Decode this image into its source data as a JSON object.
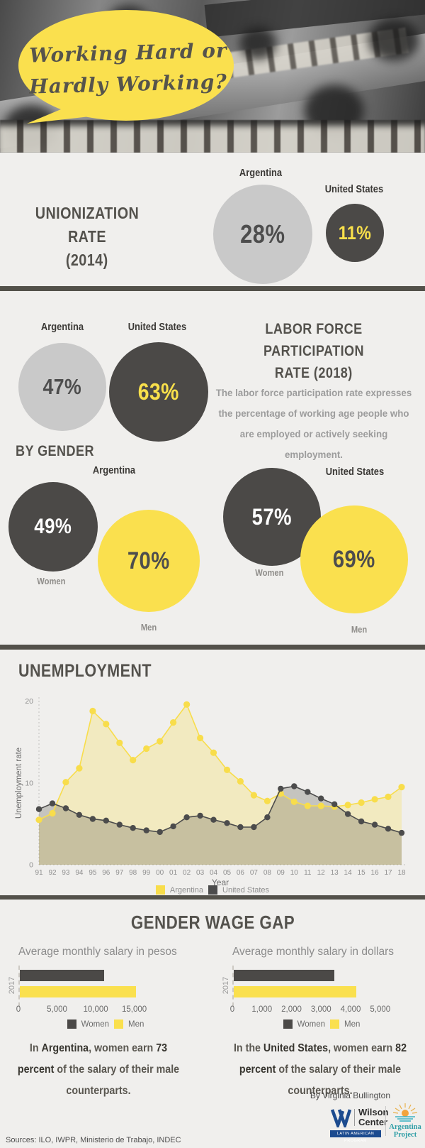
{
  "colors": {
    "background": "#f0efed",
    "yellow": "#fae04e",
    "dark": "#4b4947",
    "light_circle": "#c9c9c9",
    "divider": "#53514a"
  },
  "header": {
    "bubble_line1": "Working Hard or",
    "bubble_line2": "Hardly Working?"
  },
  "unionization": {
    "title_line1": "UNIONIZATION RATE",
    "title_line2": "(2014)",
    "argentina": {
      "label": "Argentina",
      "value": "28%"
    },
    "united_states": {
      "label": "United States",
      "value": "11%"
    }
  },
  "lfpr": {
    "title_line1": "LABOR FORCE PARTICIPATION",
    "title_line2": "RATE (2018)",
    "description": "The labor force participation rate expresses the percentage of working age people who are employed or actively seeking employment.",
    "argentina": {
      "label": "Argentina",
      "value": "47%"
    },
    "united_states": {
      "label": "United States",
      "value": "63%"
    }
  },
  "by_gender": {
    "heading": "BY GENDER",
    "argentina": {
      "label": "Argentina",
      "women_value": "49%",
      "men_value": "70%",
      "women_label": "Women",
      "men_label": "Men"
    },
    "united_states": {
      "label": "United States",
      "women_value": "57%",
      "men_value": "69%",
      "women_label": "Women",
      "men_label": "Men"
    }
  },
  "unemployment": {
    "heading": "UNEMPLOYMENT"
  },
  "wage_gap": {
    "heading": "GENDER WAGE GAP",
    "captions": {
      "argentina": {
        "pre": "In ",
        "bold1": "Argentina",
        "mid": ", women earn ",
        "bold2": "73 percent",
        "post": " of the salary of their male counterparts."
      },
      "united_states": {
        "pre": "In the ",
        "bold1": "United States",
        "mid": ", women earn ",
        "bold2": "82 percent",
        "post": " of the salary of their male counterparts."
      }
    }
  },
  "footer": {
    "byline": "By Virginia Bullington",
    "sources": "Sources: ILO, IWPR, Ministerio de Trabajo, INDEC",
    "wilson_center": {
      "name_line1": "Wilson",
      "name_line2": "Center",
      "program": "LATIN AMERICAN PROGRAM"
    },
    "argentina_project": {
      "line1": "Argentina",
      "line2": "Project"
    }
  },
  "chart_data": [
    {
      "id": "unemployment",
      "type": "area",
      "title": "UNEMPLOYMENT",
      "xlabel": "Year",
      "ylabel": "Unemployment rate",
      "x": [
        "91",
        "92",
        "93",
        "94",
        "95",
        "96",
        "97",
        "98",
        "99",
        "00",
        "01",
        "02",
        "03",
        "04",
        "05",
        "06",
        "07",
        "08",
        "09",
        "10",
        "11",
        "12",
        "13",
        "14",
        "15",
        "16",
        "17",
        "18"
      ],
      "yticks": [
        0,
        10,
        20
      ],
      "ylim": [
        0,
        21
      ],
      "grid": false,
      "legend_position": "bottom",
      "series": [
        {
          "name": "Argentina",
          "color": "#f8dd4b",
          "fill": "rgba(248,221,75,0.28)",
          "values": [
            5.5,
            6.3,
            10.1,
            11.8,
            18.8,
            17.2,
            14.9,
            12.8,
            14.2,
            15.1,
            17.4,
            19.6,
            15.5,
            13.7,
            11.6,
            10.2,
            8.5,
            7.8,
            8.7,
            7.7,
            7.2,
            7.2,
            7.1,
            7.3,
            7.6,
            8.0,
            8.3,
            9.5
          ]
        },
        {
          "name": "United States",
          "color": "#4c4c4c",
          "fill": "rgba(99,96,85,0.30)",
          "values": [
            6.8,
            7.5,
            6.9,
            6.1,
            5.6,
            5.4,
            4.9,
            4.5,
            4.2,
            4.0,
            4.7,
            5.8,
            6.0,
            5.5,
            5.1,
            4.6,
            4.6,
            5.8,
            9.3,
            9.6,
            8.9,
            8.1,
            7.4,
            6.2,
            5.3,
            4.9,
            4.4,
            3.9
          ]
        }
      ]
    },
    {
      "id": "salary-pesos",
      "type": "bar",
      "orientation": "horizontal",
      "title": "Average monthly salary in pesos",
      "year_label": "2017",
      "categories": [
        "Women",
        "Men"
      ],
      "values": [
        10900,
        15000
      ],
      "colors": [
        "#4b4947",
        "#fae04e"
      ],
      "xticks": [
        0,
        5000,
        10000,
        15000
      ],
      "xtick_labels": [
        "0",
        "5,000",
        "10,000",
        "15,000"
      ],
      "xlim": [
        0,
        16500
      ]
    },
    {
      "id": "salary-dollars",
      "type": "bar",
      "orientation": "horizontal",
      "title": "Average monthly salary in dollars",
      "year_label": "2017",
      "categories": [
        "Women",
        "Men"
      ],
      "values": [
        3400,
        4150
      ],
      "colors": [
        "#4b4947",
        "#fae04e"
      ],
      "xticks": [
        0,
        1000,
        2000,
        3000,
        4000,
        5000
      ],
      "xtick_labels": [
        "0",
        "1,000",
        "2,000",
        "3,000",
        "4,000",
        "5,000"
      ],
      "xlim": [
        0,
        5700
      ]
    }
  ]
}
